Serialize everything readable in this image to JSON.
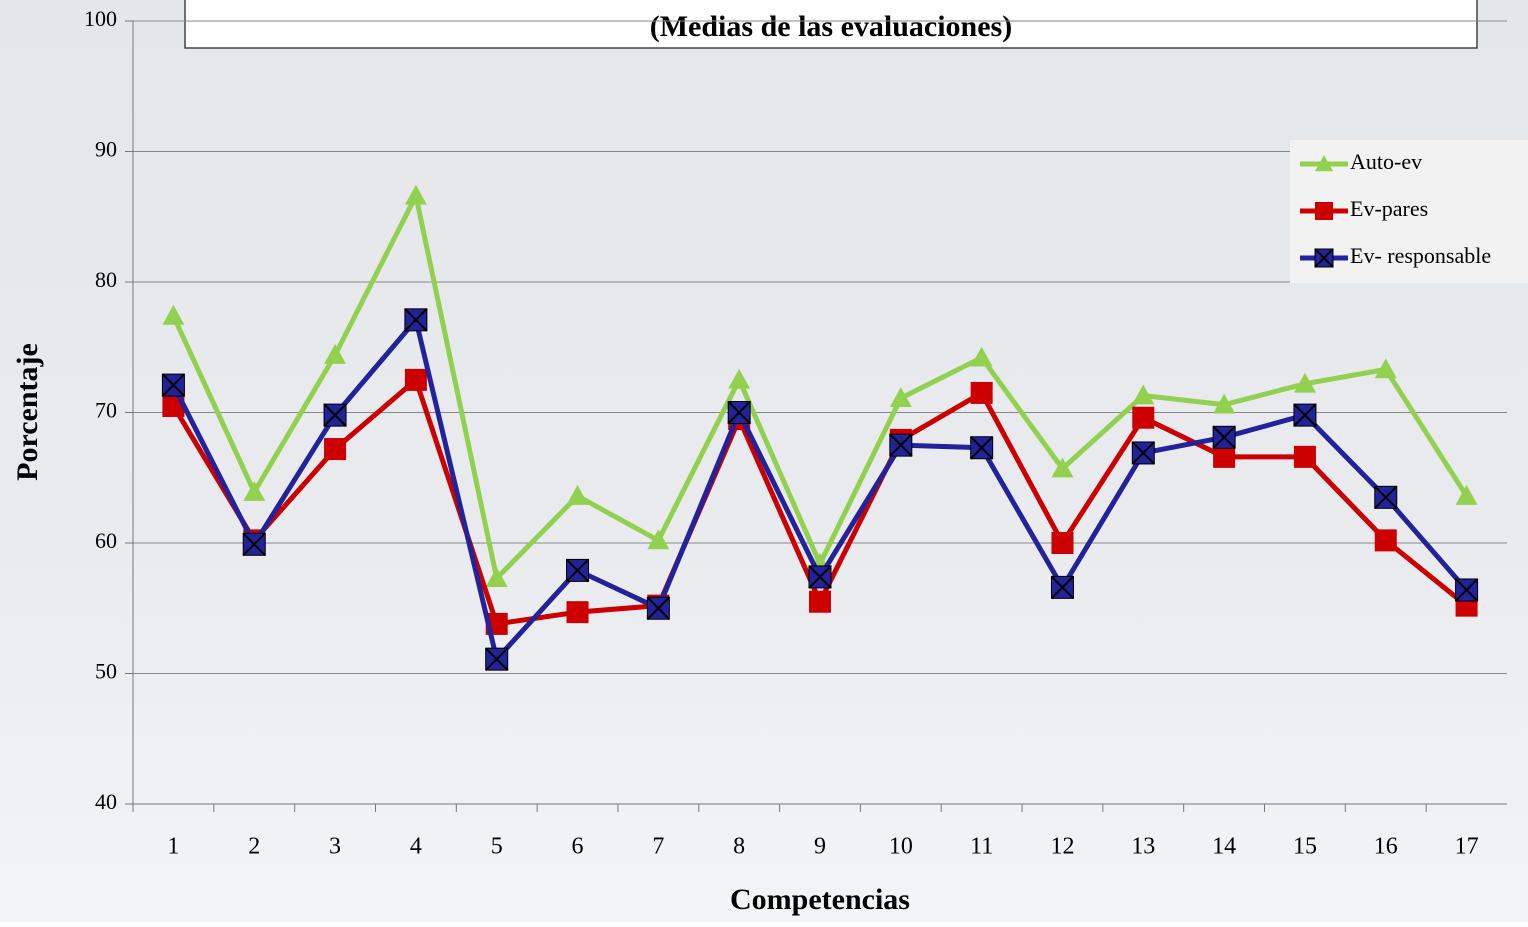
{
  "chart_data": {
    "type": "line",
    "title": "(Medias de las evaluaciones)",
    "xlabel": "Competencias",
    "ylabel": "Porcentaje",
    "categories": [
      "1",
      "2",
      "3",
      "4",
      "5",
      "6",
      "7",
      "8",
      "9",
      "10",
      "11",
      "12",
      "13",
      "14",
      "15",
      "16",
      "17"
    ],
    "series": [
      {
        "name": "Auto-ev",
        "color": "#92d050",
        "marker": "triangle",
        "values": [
          77.4,
          63.9,
          74.4,
          86.6,
          57.3,
          63.6,
          60.2,
          72.5,
          58.4,
          71.1,
          74.2,
          65.7,
          71.3,
          70.6,
          72.2,
          73.3,
          63.6
        ]
      },
      {
        "name": "Ev-pares",
        "color": "#cc0000",
        "marker": "square",
        "values": [
          70.5,
          60.2,
          67.2,
          72.5,
          53.8,
          54.7,
          55.2,
          69.5,
          55.5,
          67.9,
          71.5,
          60.0,
          69.6,
          66.6,
          66.6,
          60.2,
          55.2
        ]
      },
      {
        "name": "Ev- responsable",
        "color": "#22229a",
        "marker": "xsquare",
        "values": [
          72.1,
          59.9,
          69.8,
          77.1,
          51.1,
          57.9,
          55.0,
          70.0,
          57.4,
          67.5,
          67.3,
          56.6,
          66.9,
          68.1,
          69.8,
          63.5,
          56.4
        ]
      }
    ],
    "ylim": [
      40,
      100
    ],
    "yticks": [
      40,
      50,
      60,
      70,
      80,
      90,
      100
    ],
    "grid": true,
    "legend": "upper right"
  }
}
